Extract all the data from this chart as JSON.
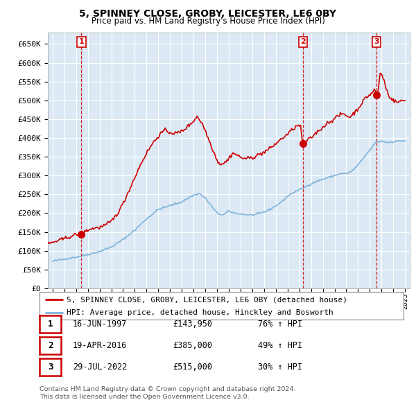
{
  "title": "5, SPINNEY CLOSE, GROBY, LEICESTER, LE6 0BY",
  "subtitle": "Price paid vs. HM Land Registry's House Price Index (HPI)",
  "background_color": "#ffffff",
  "plot_bg_color": "#dce9f5",
  "grid_color": "#ffffff",
  "sale_color": "#cc0000",
  "hpi_color": "#7fb3d9",
  "sale_label": "5, SPINNEY CLOSE, GROBY, LEICESTER, LE6 0BY (detached house)",
  "hpi_label": "HPI: Average price, detached house, Hinckley and Bosworth",
  "transactions": [
    {
      "num": 1,
      "date_label": "16-JUN-1997",
      "price_label": "£143,950",
      "pct": "76%",
      "year_x": 1997.46,
      "price_y": 143950
    },
    {
      "num": 2,
      "date_label": "19-APR-2016",
      "price_label": "£385,000",
      "pct": "49%",
      "year_x": 2016.29,
      "price_y": 385000
    },
    {
      "num": 3,
      "date_label": "29-JUL-2022",
      "price_label": "£515,000",
      "pct": "30%",
      "year_x": 2022.57,
      "price_y": 515000
    }
  ],
  "footer1": "Contains HM Land Registry data © Crown copyright and database right 2024.",
  "footer2": "This data is licensed under the Open Government Licence v3.0.",
  "ylim": [
    0,
    680000
  ],
  "xlim_start": 1994.6,
  "xlim_end": 2025.4,
  "yticks": [
    0,
    50000,
    100000,
    150000,
    200000,
    250000,
    300000,
    350000,
    400000,
    450000,
    500000,
    550000,
    600000,
    650000
  ],
  "xticks": [
    1995,
    1996,
    1997,
    1998,
    1999,
    2000,
    2001,
    2002,
    2003,
    2004,
    2005,
    2006,
    2007,
    2008,
    2009,
    2010,
    2011,
    2012,
    2013,
    2014,
    2015,
    2016,
    2017,
    2018,
    2019,
    2020,
    2021,
    2022,
    2023,
    2024,
    2025
  ],
  "hpi_anchors": [
    [
      1995.0,
      72000
    ],
    [
      1996.0,
      78000
    ],
    [
      1997.0,
      83000
    ],
    [
      1998.0,
      90000
    ],
    [
      1999.0,
      98000
    ],
    [
      2000.0,
      110000
    ],
    [
      2001.0,
      130000
    ],
    [
      2002.0,
      155000
    ],
    [
      2003.0,
      185000
    ],
    [
      2004.0,
      210000
    ],
    [
      2005.0,
      220000
    ],
    [
      2006.0,
      230000
    ],
    [
      2007.0,
      248000
    ],
    [
      2007.5,
      252000
    ],
    [
      2008.0,
      240000
    ],
    [
      2008.5,
      220000
    ],
    [
      2009.0,
      200000
    ],
    [
      2009.5,
      195000
    ],
    [
      2010.0,
      205000
    ],
    [
      2010.5,
      200000
    ],
    [
      2011.0,
      198000
    ],
    [
      2011.5,
      196000
    ],
    [
      2012.0,
      195000
    ],
    [
      2012.5,
      198000
    ],
    [
      2013.0,
      203000
    ],
    [
      2013.5,
      210000
    ],
    [
      2014.0,
      220000
    ],
    [
      2014.5,
      230000
    ],
    [
      2015.0,
      245000
    ],
    [
      2015.5,
      255000
    ],
    [
      2016.0,
      262000
    ],
    [
      2016.5,
      270000
    ],
    [
      2017.0,
      278000
    ],
    [
      2017.5,
      285000
    ],
    [
      2018.0,
      290000
    ],
    [
      2018.5,
      295000
    ],
    [
      2019.0,
      300000
    ],
    [
      2019.5,
      305000
    ],
    [
      2020.0,
      305000
    ],
    [
      2020.5,
      312000
    ],
    [
      2021.0,
      328000
    ],
    [
      2021.5,
      348000
    ],
    [
      2022.0,
      368000
    ],
    [
      2022.5,
      388000
    ],
    [
      2023.0,
      392000
    ],
    [
      2023.5,
      388000
    ],
    [
      2024.0,
      390000
    ],
    [
      2024.5,
      392000
    ],
    [
      2025.0,
      393000
    ]
  ],
  "sale_anchors": [
    [
      1994.6,
      118000
    ],
    [
      1995.0,
      122000
    ],
    [
      1995.5,
      127000
    ],
    [
      1996.0,
      132000
    ],
    [
      1996.5,
      138000
    ],
    [
      1997.0,
      143000
    ],
    [
      1997.46,
      143950
    ],
    [
      1997.6,
      148000
    ],
    [
      1998.0,
      155000
    ],
    [
      1998.5,
      160000
    ],
    [
      1999.0,
      162000
    ],
    [
      1999.5,
      168000
    ],
    [
      2000.0,
      178000
    ],
    [
      2000.5,
      198000
    ],
    [
      2001.0,
      225000
    ],
    [
      2001.5,
      260000
    ],
    [
      2002.0,
      295000
    ],
    [
      2002.5,
      330000
    ],
    [
      2003.0,
      360000
    ],
    [
      2003.5,
      385000
    ],
    [
      2004.0,
      405000
    ],
    [
      2004.5,
      420000
    ],
    [
      2005.0,
      415000
    ],
    [
      2005.5,
      412000
    ],
    [
      2006.0,
      418000
    ],
    [
      2006.5,
      430000
    ],
    [
      2007.0,
      445000
    ],
    [
      2007.3,
      458000
    ],
    [
      2007.7,
      440000
    ],
    [
      2008.0,
      420000
    ],
    [
      2008.3,
      395000
    ],
    [
      2008.7,
      365000
    ],
    [
      2009.0,
      340000
    ],
    [
      2009.3,
      330000
    ],
    [
      2009.7,
      335000
    ],
    [
      2010.0,
      345000
    ],
    [
      2010.3,
      360000
    ],
    [
      2010.7,
      355000
    ],
    [
      2011.0,
      348000
    ],
    [
      2011.5,
      345000
    ],
    [
      2012.0,
      348000
    ],
    [
      2012.5,
      355000
    ],
    [
      2013.0,
      362000
    ],
    [
      2013.5,
      372000
    ],
    [
      2014.0,
      385000
    ],
    [
      2014.5,
      398000
    ],
    [
      2015.0,
      410000
    ],
    [
      2015.5,
      425000
    ],
    [
      2016.0,
      435000
    ],
    [
      2016.1,
      430000
    ],
    [
      2016.29,
      385000
    ],
    [
      2016.5,
      390000
    ],
    [
      2017.0,
      400000
    ],
    [
      2017.3,
      410000
    ],
    [
      2017.6,
      418000
    ],
    [
      2018.0,
      428000
    ],
    [
      2018.3,
      438000
    ],
    [
      2018.7,
      445000
    ],
    [
      2019.0,
      452000
    ],
    [
      2019.3,
      458000
    ],
    [
      2019.7,
      465000
    ],
    [
      2020.0,
      460000
    ],
    [
      2020.3,
      455000
    ],
    [
      2020.7,
      468000
    ],
    [
      2021.0,
      478000
    ],
    [
      2021.3,
      492000
    ],
    [
      2021.6,
      505000
    ],
    [
      2022.0,
      515000
    ],
    [
      2022.2,
      520000
    ],
    [
      2022.4,
      530000
    ],
    [
      2022.57,
      515000
    ],
    [
      2022.7,
      525000
    ],
    [
      2022.9,
      575000
    ],
    [
      2023.0,
      570000
    ],
    [
      2023.2,
      555000
    ],
    [
      2023.4,
      530000
    ],
    [
      2023.6,
      515000
    ],
    [
      2023.8,
      505000
    ],
    [
      2024.0,
      500000
    ],
    [
      2024.3,
      495000
    ],
    [
      2024.6,
      498000
    ],
    [
      2025.0,
      500000
    ]
  ]
}
